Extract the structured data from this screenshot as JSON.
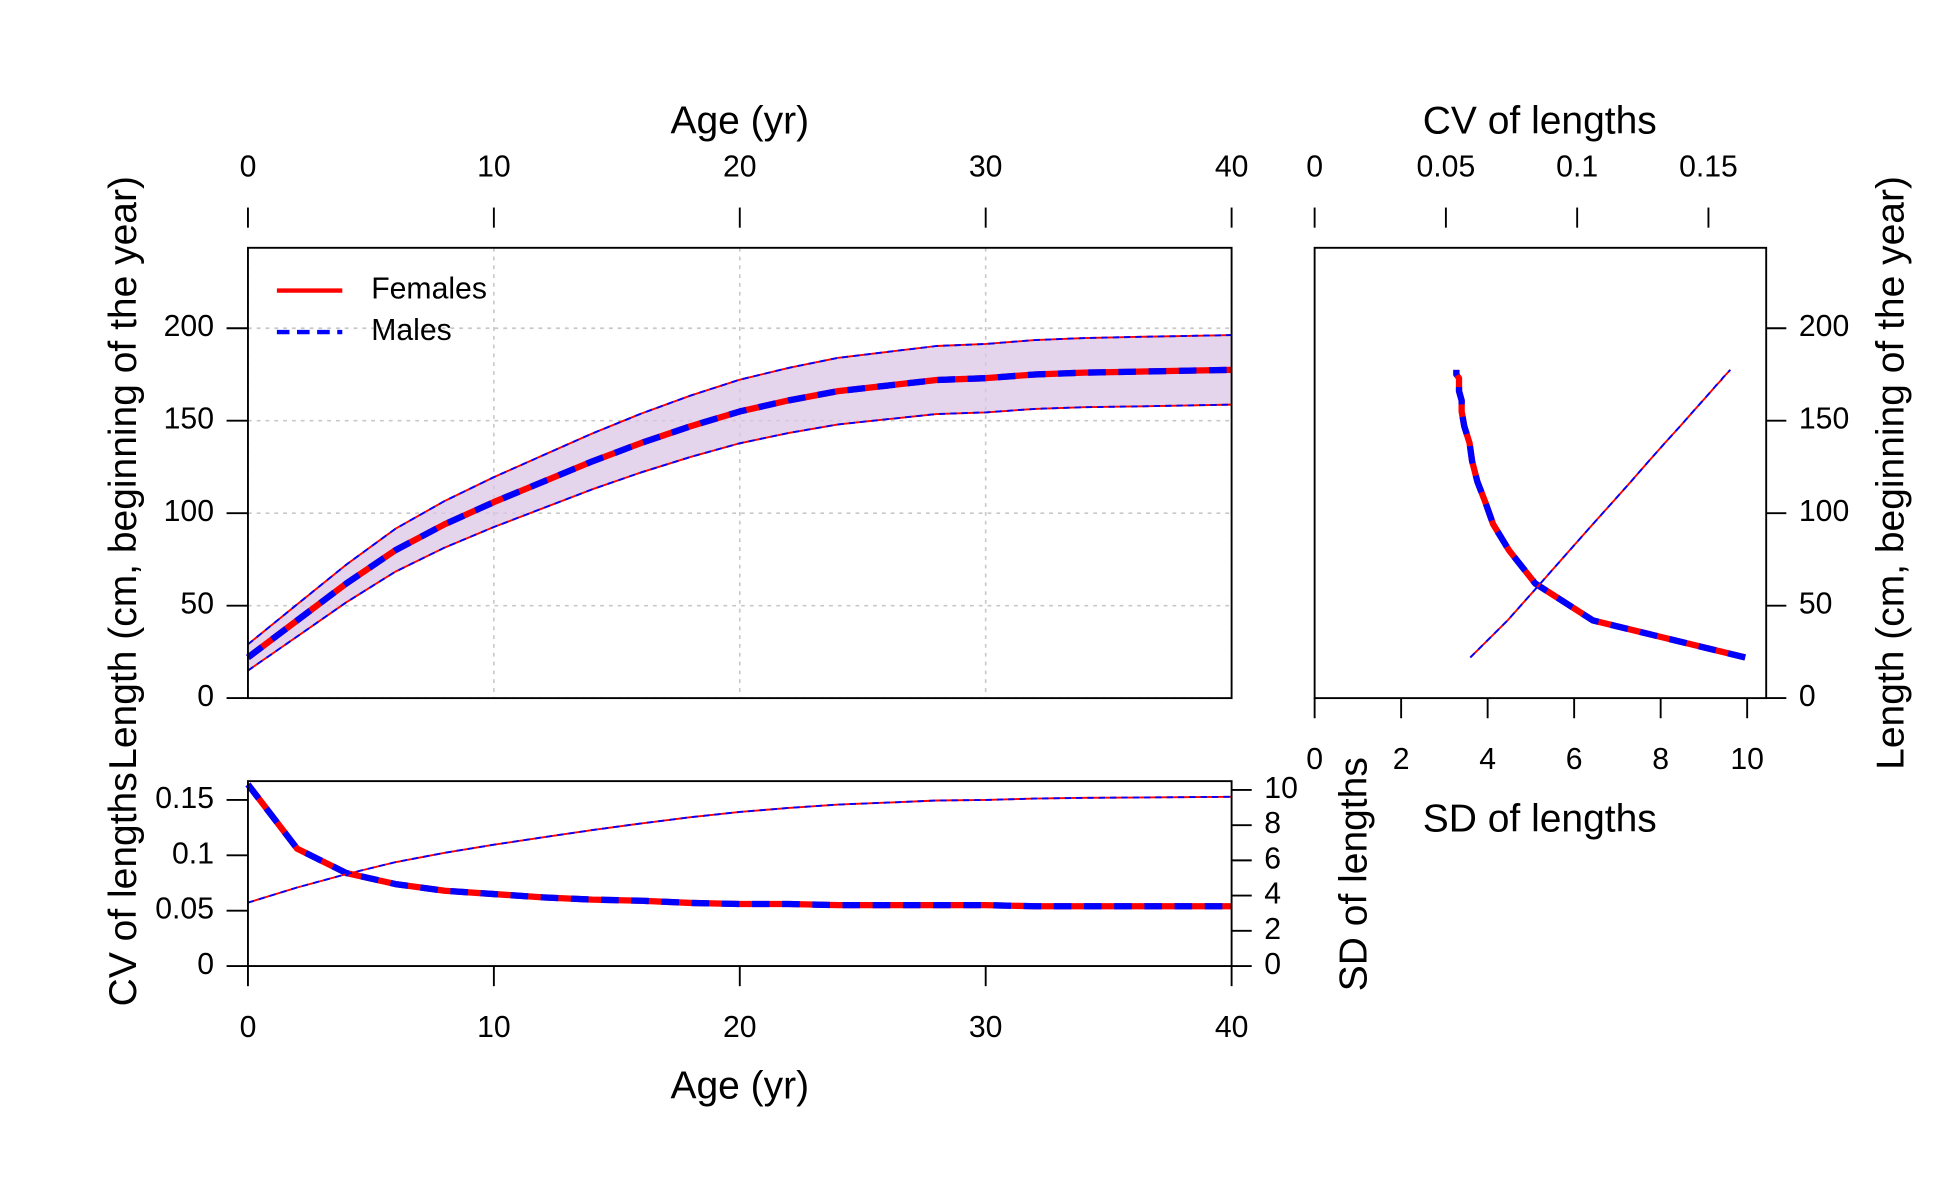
{
  "chart_data": [
    {
      "type": "line",
      "xlabel": "Age (yr)",
      "ylabel": "Length (cm, beginning of the year)",
      "x": [
        0,
        2,
        4,
        6,
        8,
        10,
        12,
        14,
        16,
        18,
        20,
        22,
        24,
        26,
        28,
        30,
        32,
        34,
        36,
        38,
        40
      ],
      "xlim": [
        0,
        40
      ],
      "xticks": [
        0,
        10,
        20,
        30,
        40
      ],
      "ylim": [
        0,
        243.5
      ],
      "yticks": [
        0,
        50,
        100,
        150,
        200
      ],
      "grid": true,
      "legend": "topleft",
      "band_color": "#dcc6e6",
      "series": [
        {
          "name": "Females",
          "color": "#ff0000",
          "linestyle": "solid",
          "values": [
            22,
            42,
            62,
            80,
            94,
            106,
            117,
            128,
            138,
            147,
            155,
            161,
            166,
            169,
            172,
            173,
            175,
            176,
            176.5,
            177,
            177.5
          ],
          "upper": [
            29.1,
            50.7,
            72.2,
            91.6,
            106.6,
            119.5,
            131.3,
            143.1,
            153.9,
            163.6,
            172.2,
            178.6,
            184.0,
            187.2,
            190.4,
            191.5,
            193.6,
            194.7,
            195.3,
            195.8,
            196.3
          ],
          "lower": [
            14.9,
            33.3,
            51.8,
            68.4,
            81.4,
            92.5,
            102.7,
            112.9,
            122.1,
            130.4,
            137.8,
            143.4,
            148.0,
            150.8,
            153.6,
            154.5,
            156.4,
            157.3,
            157.7,
            158.2,
            158.7
          ]
        },
        {
          "name": "Males",
          "color": "#0000ff",
          "linestyle": "dashed",
          "values": [
            22,
            42,
            62,
            80,
            94,
            106,
            117,
            128,
            138,
            147,
            155,
            161,
            166,
            169,
            172,
            173,
            175,
            176,
            176.5,
            177,
            177.5
          ],
          "upper": [
            29.1,
            50.7,
            72.2,
            91.6,
            106.6,
            119.5,
            131.3,
            143.1,
            153.9,
            163.6,
            172.2,
            178.6,
            184.0,
            187.2,
            190.4,
            191.5,
            193.6,
            194.7,
            195.3,
            195.8,
            196.3
          ],
          "lower": [
            14.9,
            33.3,
            51.8,
            68.4,
            81.4,
            92.5,
            102.7,
            112.9,
            122.1,
            130.4,
            137.8,
            143.4,
            148.0,
            150.8,
            153.6,
            154.5,
            156.4,
            157.3,
            157.7,
            158.2,
            158.7
          ]
        }
      ]
    },
    {
      "type": "line",
      "xlabel": "Age (yr)",
      "ylabel": "CV of lengths",
      "y2label": "SD of lengths",
      "xlim": [
        0,
        40
      ],
      "xticks": [
        0,
        10,
        20,
        30,
        40
      ],
      "ylim": [
        0,
        0.167
      ],
      "yticks": [
        0,
        0.05,
        0.1,
        0.15
      ],
      "y2lim": [
        0,
        10.5
      ],
      "y2ticks": [
        0,
        2,
        4,
        6,
        8,
        10
      ],
      "series": [
        {
          "color": "#ff0000",
          "linestyle": "solid",
          "values": [
            0.164,
            0.106,
            0.084,
            0.074,
            0.068,
            0.065,
            0.062,
            0.06,
            0.059,
            0.057,
            0.056,
            0.056,
            0.055,
            0.055,
            0.055,
            0.055,
            0.054,
            0.054,
            0.054,
            0.054,
            0.054
          ]
        },
        {
          "color": "#0000ff",
          "linestyle": "dashed",
          "values": [
            0.164,
            0.106,
            0.084,
            0.074,
            0.068,
            0.065,
            0.062,
            0.06,
            0.059,
            0.057,
            0.056,
            0.056,
            0.055,
            0.055,
            0.055,
            0.055,
            0.054,
            0.054,
            0.054,
            0.054,
            0.054
          ]
        },
        {
          "color": "#ff0000",
          "linestyle": "solid",
          "axis": "y2",
          "values": [
            3.6,
            4.46,
            5.22,
            5.9,
            6.43,
            6.89,
            7.31,
            7.72,
            8.1,
            8.45,
            8.75,
            8.98,
            9.17,
            9.28,
            9.4,
            9.43,
            9.51,
            9.55,
            9.57,
            9.59,
            9.61
          ]
        },
        {
          "color": "#0000ff",
          "linestyle": "dashed",
          "axis": "y2",
          "values": [
            3.6,
            4.46,
            5.22,
            5.9,
            6.43,
            6.89,
            7.31,
            7.72,
            8.1,
            8.45,
            8.75,
            8.98,
            9.17,
            9.28,
            9.4,
            9.43,
            9.51,
            9.55,
            9.57,
            9.59,
            9.61
          ]
        }
      ]
    },
    {
      "type": "line",
      "xlabel": "CV of lengths",
      "x2label": "SD of lengths",
      "ylabel": "Length (cm, beginning of the year)",
      "xlim": [
        0,
        0.172
      ],
      "xticks": [
        0,
        0.05,
        0.1,
        0.15
      ],
      "x2lim": [
        0,
        10.44
      ],
      "x2ticks": [
        0,
        2,
        4,
        6,
        8,
        10
      ],
      "ylim": [
        0,
        243.5
      ],
      "yticks": [
        0,
        50,
        100,
        150,
        200
      ]
    }
  ]
}
